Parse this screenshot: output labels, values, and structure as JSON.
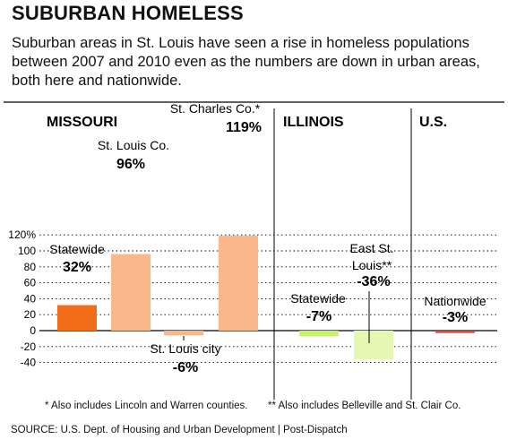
{
  "title": "SUBURBAN HOMELESS",
  "subtitle": "Suburban areas in St. Louis have seen a rise in homeless populations between 2007 and 2010 even as the numbers are down in urban areas, both here and nationwide.",
  "footnotes": {
    "one": "* Also includes Lincoln and Warren counties.",
    "two": "** Also includes Belleville and St. Clair Co."
  },
  "source": "SOURCE: U.S. Dept. of Housing and Urban Development  |  Post-Dispatch",
  "chart_data": {
    "type": "bar",
    "ylim": [
      -40,
      120
    ],
    "y_ticks": [
      "120%",
      "100",
      "80",
      "60",
      "40",
      "20",
      "0",
      "-20",
      "-40"
    ],
    "y_tick_values": [
      120,
      100,
      80,
      60,
      40,
      20,
      0,
      -20,
      -40
    ],
    "grid": "dotted horizontal",
    "groups": [
      {
        "name": "MISSOURI",
        "bars": [
          0,
          1,
          2,
          3
        ]
      },
      {
        "name": "ILLINOIS",
        "bars": [
          4,
          5
        ]
      },
      {
        "name": "U.S.",
        "bars": [
          6
        ]
      }
    ],
    "bars": [
      {
        "label": "Statewide",
        "value": 32,
        "value_label": "32%",
        "color": "#f26d18"
      },
      {
        "label": "St. Louis Co.",
        "value": 96,
        "value_label": "96%",
        "color": "#f9b78a"
      },
      {
        "label": "St. Louis city",
        "value": -6,
        "value_label": "-6%",
        "color": "#f9b78a"
      },
      {
        "label": "St. Charles Co.*",
        "value": 119,
        "value_label": "119%",
        "color": "#f9b78a"
      },
      {
        "label": "Statewide",
        "value": -7,
        "value_label": "-7%",
        "color": "#c5f26a"
      },
      {
        "label": "East St. Louis**",
        "value": -36,
        "value_label": "-36%",
        "color": "#e4f8b4"
      },
      {
        "label": "Nationwide",
        "value": -3,
        "value_label": "-3%",
        "color": "#e2463a"
      }
    ]
  }
}
